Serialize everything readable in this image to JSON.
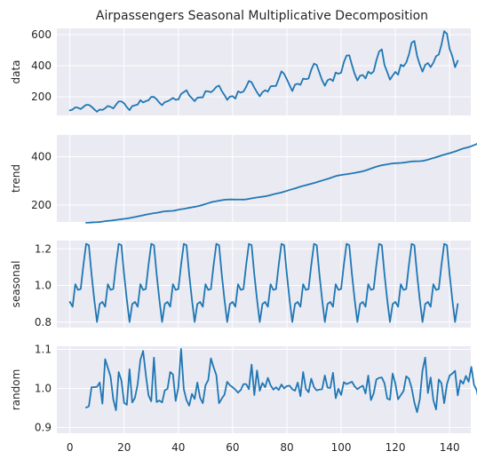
{
  "chart_data": {
    "type": "line",
    "title": "Airpassengers Seasonal Multiplicative Decomposition",
    "xlabel": "",
    "xlim": [
      -4.8,
      147.8
    ],
    "xticks": [
      0,
      20,
      40,
      60,
      80,
      100,
      120,
      140
    ],
    "x_shared": true,
    "grid": true,
    "color": "#1f77b4",
    "background": "#eaeaf2",
    "panels": [
      {
        "ylabel": "data",
        "ylim": [
          80,
          640
        ],
        "yticks": [
          200,
          400,
          600
        ],
        "x_start": 0,
        "values": [
          112,
          118,
          132,
          129,
          121,
          135,
          148,
          148,
          136,
          119,
          104,
          118,
          115,
          126,
          141,
          135,
          125,
          149,
          170,
          170,
          158,
          133,
          114,
          140,
          145,
          150,
          178,
          163,
          172,
          178,
          199,
          199,
          184,
          162,
          146,
          166,
          171,
          180,
          193,
          181,
          183,
          218,
          230,
          242,
          209,
          191,
          172,
          194,
          196,
          196,
          236,
          235,
          229,
          243,
          264,
          272,
          237,
          211,
          180,
          201,
          204,
          188,
          235,
          227,
          234,
          264,
          302,
          293,
          259,
          229,
          203,
          229,
          242,
          233,
          267,
          269,
          270,
          315,
          364,
          347,
          312,
          274,
          237,
          278,
          284,
          277,
          317,
          313,
          318,
          374,
          413,
          405,
          355,
          306,
          271,
          306,
          315,
          301,
          356,
          348,
          355,
          422,
          465,
          467,
          404,
          347,
          305,
          336,
          340,
          318,
          362,
          348,
          363,
          435,
          491,
          505,
          404,
          359,
          310,
          337,
          360,
          342,
          406,
          396,
          420,
          472,
          548,
          559,
          463,
          407,
          362,
          405,
          417,
          391,
          419,
          461,
          472,
          535,
          622,
          606,
          508,
          461,
          390,
          432
        ]
      },
      {
        "ylabel": "trend",
        "ylim": [
          130,
          490
        ],
        "yticks": [
          200,
          400
        ],
        "x_start": 6,
        "values": [
          126.8,
          127.2,
          127.9,
          128.6,
          129.0,
          129.8,
          131.3,
          133.1,
          134.5,
          135.5,
          136.8,
          138.3,
          140.0,
          141.5,
          143.0,
          144.3,
          146.1,
          148.3,
          150.8,
          153.1,
          155.3,
          157.6,
          160.2,
          162.3,
          164.4,
          166.1,
          167.6,
          169.8,
          172.3,
          174.1,
          174.8,
          175.4,
          176.0,
          178.0,
          180.6,
          182.8,
          184.3,
          186.3,
          188.5,
          190.7,
          192.7,
          194.7,
          197.7,
          200.9,
          204.2,
          207.8,
          211.2,
          213.9,
          215.8,
          218.0,
          220.0,
          221.7,
          222.7,
          223.0,
          222.9,
          222.8,
          222.8,
          222.7,
          222.6,
          223.5,
          225.5,
          227.8,
          229.8,
          231.5,
          233.0,
          234.5,
          236.2,
          238.3,
          241.2,
          244.3,
          246.9,
          249.2,
          252.0,
          255.2,
          258.8,
          262.5,
          265.7,
          268.8,
          272.3,
          276.1,
          279.2,
          282.0,
          285.1,
          288.1,
          291.3,
          294.5,
          298.1,
          301.5,
          304.7,
          308.0,
          311.9,
          315.8,
          319.5,
          322.5,
          324.3,
          326.0,
          327.6,
          329.3,
          331.0,
          333.0,
          335.1,
          337.3,
          339.9,
          343.0,
          346.8,
          351.1,
          355.1,
          358.6,
          361.7,
          364.5,
          366.5,
          368.4,
          370.5,
          372.1,
          373.2,
          373.5,
          374.2,
          375.4,
          377.0,
          378.7,
          380.3,
          381.0,
          381.3,
          381.6,
          382.5,
          384.7,
          387.8,
          391.2,
          394.6,
          397.8,
          401.4,
          405.0,
          408.4,
          411.3,
          414.6,
          418.2,
          421.6,
          425.7,
          430.2,
          433.8,
          436.7,
          439.4,
          443.4,
          447.9,
          452.6,
          457.8,
          462.2,
          466.0,
          469.2,
          472.2,
          475.0,
          476.0
        ]
      },
      {
        "ylabel": "seasonal",
        "ylim": [
          0.77,
          1.245
        ],
        "yticks": [
          0.8,
          1.0,
          1.2
        ],
        "yticklabels": [
          "0.8",
          "1.0",
          "1.2"
        ],
        "x_start": 0,
        "period": 12,
        "values": [
          0.91,
          0.884,
          1.007,
          0.976,
          0.981,
          1.113,
          1.227,
          1.22,
          1.06,
          0.922,
          0.801,
          0.899
        ]
      },
      {
        "ylabel": "random",
        "ylim": [
          0.885,
          1.108
        ],
        "yticks": [
          0.9,
          1.0,
          1.1
        ],
        "yticklabels": [
          "0.9",
          "1.0",
          "1.1"
        ],
        "x_start": 6,
        "values": [
          0.951,
          0.954,
          1.003,
          1.003,
          1.004,
          1.015,
          0.961,
          1.075,
          1.053,
          1.03,
          0.972,
          0.944,
          1.042,
          1.02,
          0.963,
          0.958,
          1.049,
          0.964,
          0.976,
          1.011,
          1.073,
          1.096,
          1.035,
          0.982,
          0.967,
          1.079,
          0.965,
          0.969,
          0.964,
          0.995,
          0.999,
          1.042,
          1.036,
          0.968,
          1.003,
          1.101,
          0.998,
          0.97,
          0.956,
          0.986,
          0.973,
          1.015,
          0.976,
          0.962,
          1.008,
          1.021,
          1.077,
          1.054,
          1.034,
          0.962,
          0.974,
          0.984,
          1.017,
          1.008,
          1.003,
          0.997,
          0.989,
          0.996,
          1.011,
          1.011,
          0.998,
          1.061,
          0.983,
          1.046,
          0.994,
          1.014,
          1.003,
          1.027,
          1.008,
          0.997,
          1.003,
          0.996,
          1.01,
          1.0,
          1.006,
          1.007,
          0.998,
          0.994,
          1.015,
          0.98,
          1.042,
          0.999,
          0.99,
          1.025,
          1.003,
          0.995,
          0.997,
          0.998,
          1.033,
          1.002,
          1.001,
          1.04,
          0.975,
          0.999,
          0.983,
          1.016,
          1.011,
          1.014,
          1.017,
          1.005,
          0.998,
          1.003,
          1.007,
          0.987,
          1.033,
          0.97,
          0.987,
          1.023,
          1.027,
          1.028,
          1.013,
          0.974,
          0.971,
          1.038,
          1.012,
          0.972,
          0.983,
          0.993,
          1.031,
          1.025,
          1.001,
          0.964,
          0.939,
          0.972,
          1.046,
          1.079,
          0.988,
          1.028,
          0.97,
          0.946,
          1.023,
          1.013,
          0.962,
          1.01,
          1.033,
          1.038,
          1.045,
          0.982,
          1.021,
          1.012,
          1.032,
          1.017,
          1.055,
          1.009,
          0.995,
          0.96,
          0.898,
          0.993,
          1.014,
          1.018
        ]
      }
    ]
  }
}
